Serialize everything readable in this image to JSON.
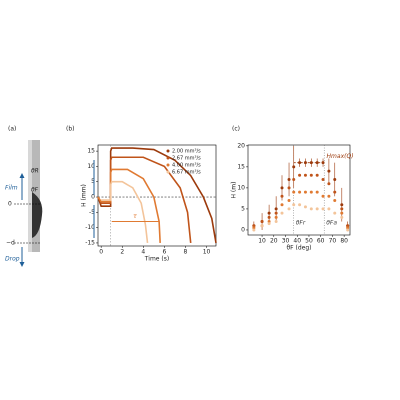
{
  "panel_a": {
    "label": "(a)",
    "labels": [
      "θR",
      "θF",
      "Film",
      "0",
      "−d",
      "Drop"
    ]
  },
  "chart_data": [
    {
      "type": "line",
      "label": "(b)",
      "ylabel": "H (mm)",
      "xlabel": "Time (s)",
      "xlim": [
        -0.3,
        10.9
      ],
      "ylim": [
        -16,
        17
      ],
      "xticks": [
        0,
        2,
        4,
        6,
        8,
        10
      ],
      "yticks": [
        -15,
        -10,
        -5,
        0,
        5,
        10,
        15
      ],
      "annotations": [
        "τ"
      ],
      "legend": "upper right",
      "series": [
        {
          "name": "2.00 mm³/s",
          "color": "#9c3a0c",
          "x": [
            -0.3,
            0,
            0.9,
            0.9,
            1,
            3,
            5,
            7,
            8.5,
            9.7,
            10.5,
            10.9
          ],
          "values": [
            0,
            -3,
            -3,
            15,
            16,
            16,
            15.5,
            12,
            7,
            0,
            -7,
            -15
          ]
        },
        {
          "name": "2.67 mm³/s",
          "color": "#c0541a",
          "x": [
            -0.3,
            0,
            0.9,
            0.9,
            1,
            4,
            6,
            7.5,
            8.2,
            8.5
          ],
          "values": [
            0,
            -2,
            -2,
            12,
            13,
            13,
            10,
            3,
            -5,
            -15
          ]
        },
        {
          "name": "4.00 mm³/s",
          "color": "#e07a32",
          "x": [
            -0.3,
            0,
            0.9,
            0.9,
            1,
            2.5,
            4,
            5,
            5.5,
            5.6
          ],
          "values": [
            0,
            -1.5,
            -1.5,
            8,
            9,
            9,
            6,
            0,
            -8,
            -15
          ]
        },
        {
          "name": "6.67 mm³/s",
          "color": "#f3c49a",
          "x": [
            0,
            0.9,
            0.9,
            1,
            2,
            3,
            3.8,
            4.2,
            4.4
          ],
          "values": [
            -1,
            -1,
            4,
            5,
            5,
            3,
            -2,
            -9,
            -15
          ]
        }
      ]
    },
    {
      "type": "scatter",
      "label": "(c)",
      "ylabel": "H (m)",
      "xlabel": "θF (deg)",
      "xlim": [
        -2,
        85
      ],
      "ylim": [
        -1.2,
        20.2
      ],
      "xticks": [
        10,
        20,
        30,
        40,
        50,
        60,
        70,
        80
      ],
      "yticks": [
        0,
        5,
        10,
        15,
        20
      ],
      "annotations": [
        "θFr",
        "θFa",
        "Hmax(Q)"
      ],
      "series": [
        {
          "color": "#9c3a0c",
          "x": [
            3,
            10,
            16,
            22,
            27,
            33,
            37,
            42,
            47,
            52,
            57,
            62,
            67,
            72,
            78,
            83
          ],
          "values": [
            1,
            2,
            4,
            5,
            10,
            12,
            15,
            16,
            16,
            16,
            16,
            16,
            14,
            12,
            6,
            1
          ],
          "errors": [
            1,
            2,
            2,
            3,
            3,
            4,
            5,
            1,
            1,
            1,
            1,
            1,
            3,
            4,
            4,
            1
          ]
        },
        {
          "color": "#c0541a",
          "x": [
            3,
            10,
            16,
            22,
            27,
            33,
            37,
            42,
            47,
            52,
            57,
            62,
            67,
            72,
            78,
            83
          ],
          "values": [
            1,
            2,
            3,
            4,
            8,
            10,
            12,
            13,
            13,
            13,
            13,
            12,
            11,
            9,
            5,
            1
          ]
        },
        {
          "color": "#e07a32",
          "x": [
            3,
            10,
            16,
            22,
            27,
            33,
            37,
            42,
            47,
            52,
            57,
            62,
            67,
            72,
            78,
            83
          ],
          "values": [
            0.5,
            1,
            2,
            3,
            6,
            7,
            9,
            9,
            9,
            9,
            9,
            8,
            8,
            7,
            4,
            0.5
          ]
        },
        {
          "color": "#f3c49a",
          "x": [
            3,
            10,
            16,
            22,
            27,
            33,
            37,
            42,
            47,
            52,
            57,
            62,
            67,
            72,
            78,
            83
          ],
          "values": [
            0,
            1,
            1.5,
            2,
            4,
            5,
            6,
            6,
            5.5,
            5,
            5,
            5,
            5,
            4,
            3,
            0
          ]
        }
      ]
    }
  ]
}
